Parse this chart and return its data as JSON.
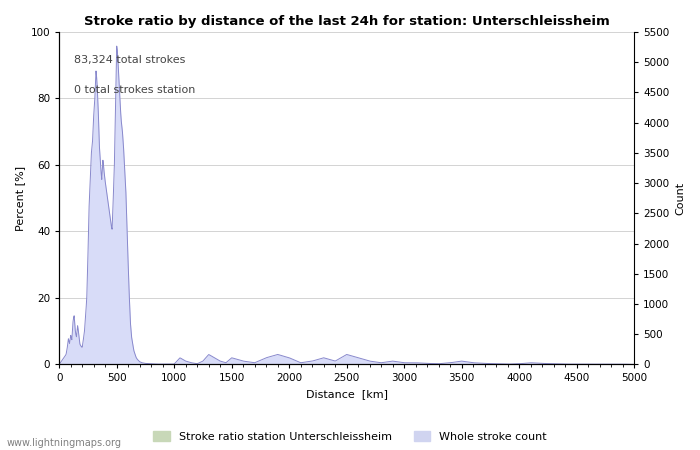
{
  "title": "Stroke ratio by distance of the last 24h for station: Unterschleissheim",
  "xlabel": "Distance  [km]",
  "ylabel_left": "Percent [%]",
  "ylabel_right": "Count",
  "annotation_line1": "83,324 total strokes",
  "annotation_line2": "0 total strokes station",
  "xlim": [
    0,
    5000
  ],
  "ylim_left": [
    0,
    100
  ],
  "ylim_right": [
    0,
    5500
  ],
  "yticks_left": [
    0,
    20,
    40,
    60,
    80,
    100
  ],
  "yticks_right": [
    0,
    500,
    1000,
    1500,
    2000,
    2500,
    3000,
    3500,
    4000,
    4500,
    5000,
    5500
  ],
  "xticks": [
    0,
    500,
    1000,
    1500,
    2000,
    2500,
    3000,
    3500,
    4000,
    4500,
    5000
  ],
  "watermark": "www.lightningmaps.org",
  "legend_entries": [
    "Stroke ratio station Unterschleissheim",
    "Whole stroke count"
  ],
  "legend_colors": [
    "#c8d8b8",
    "#d0d4f0"
  ],
  "line_color": "#8888cc",
  "fill_color_count": "#d8dcf8",
  "fill_color_ratio": "#c8d8b8",
  "grid_color": "#cccccc",
  "background_color": "#ffffff",
  "curve_x": [
    0,
    20,
    40,
    60,
    70,
    80,
    90,
    100,
    110,
    120,
    130,
    140,
    150,
    160,
    170,
    180,
    200,
    220,
    240,
    250,
    260,
    270,
    280,
    290,
    300,
    310,
    320,
    330,
    340,
    350,
    360,
    370,
    380,
    390,
    400,
    420,
    440,
    460,
    480,
    500,
    510,
    520,
    530,
    540,
    550,
    560,
    570,
    580,
    590,
    600,
    610,
    620,
    630,
    640,
    650,
    660,
    670,
    680,
    700,
    720,
    750,
    800,
    850,
    900,
    950,
    1000,
    1050,
    1100,
    1150,
    1200,
    1250,
    1300,
    1350,
    1400,
    1450,
    1500,
    1600,
    1700,
    1800,
    1900,
    2000,
    2100,
    2200,
    2300,
    2400,
    2500,
    2600,
    2700,
    2800,
    2900,
    3000,
    3100,
    3200,
    3300,
    3400,
    3500,
    3600,
    3700,
    3800,
    3900,
    4000,
    4100,
    4200,
    4300,
    4400,
    4500,
    4600,
    4700,
    4800,
    4900,
    5000
  ],
  "curve_y": [
    0,
    1,
    2,
    3,
    5,
    8,
    6,
    9,
    7,
    13,
    15,
    10,
    8,
    12,
    9,
    6,
    5,
    10,
    20,
    33,
    48,
    55,
    64,
    67,
    75,
    80,
    89,
    84,
    76,
    65,
    60,
    55,
    62,
    58,
    55,
    50,
    45,
    40,
    60,
    97,
    92,
    85,
    78,
    73,
    70,
    65,
    58,
    52,
    40,
    30,
    20,
    12,
    8,
    6,
    4,
    3,
    2,
    1.5,
    0.8,
    0.5,
    0.3,
    0.2,
    0.1,
    0.1,
    0.1,
    0.1,
    2,
    1,
    0.5,
    0.2,
    1,
    3,
    2,
    1,
    0.5,
    2,
    1,
    0.5,
    2,
    3,
    2,
    0.5,
    1,
    2,
    1,
    3,
    2,
    1,
    0.5,
    1,
    0.5,
    0.5,
    0.3,
    0.2,
    0.5,
    1,
    0.5,
    0.3,
    0.2,
    0.1,
    0.2,
    0.5,
    0.3,
    0.2,
    0.1,
    0.1,
    0.1,
    0.1,
    0.1,
    0.1,
    0
  ]
}
